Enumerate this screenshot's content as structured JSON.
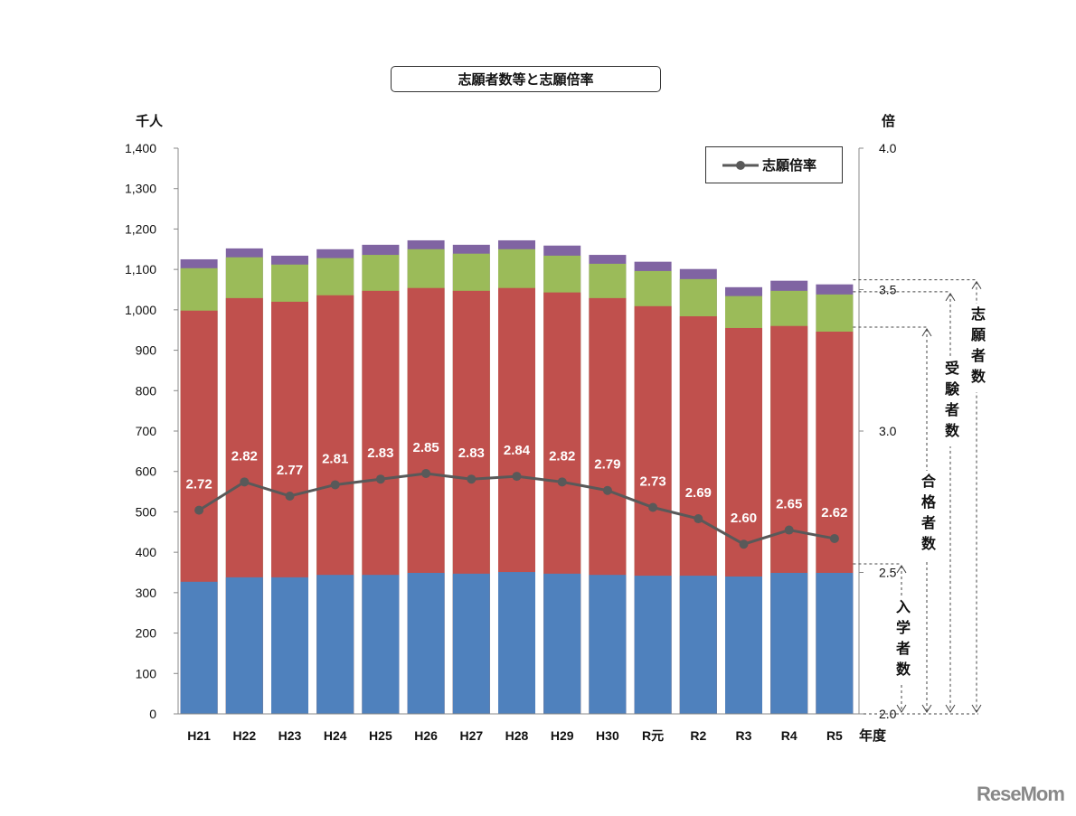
{
  "chart_data": {
    "type": "bar",
    "title": "志願者数等と志願倍率",
    "left_axis_unit": "千人",
    "right_axis_unit": "倍",
    "xlabel": "年度",
    "categories": [
      "H21",
      "H22",
      "H23",
      "H24",
      "H25",
      "H26",
      "H27",
      "H28",
      "H29",
      "H30",
      "R元",
      "R2",
      "R3",
      "R4",
      "R5"
    ],
    "ylim": [
      0,
      1400
    ],
    "y_ticks": [
      0,
      100,
      200,
      300,
      400,
      500,
      600,
      700,
      800,
      900,
      1000,
      1100,
      1200,
      1300,
      1400
    ],
    "y_tick_labels": [
      "0",
      "100",
      "200",
      "300",
      "400",
      "500",
      "600",
      "700",
      "800",
      "900",
      "1,000",
      "1,100",
      "1,200",
      "1,300",
      "1,400"
    ],
    "y2lim": [
      2.0,
      4.0
    ],
    "y2_ticks": [
      2.0,
      2.5,
      3.0,
      3.5,
      4.0
    ],
    "y2_tick_labels": [
      "2.0",
      "2.5",
      "3.0",
      "3.5",
      "4.0"
    ],
    "grid": false,
    "bars_overlapping": true,
    "series": [
      {
        "name": "志願者数",
        "color": "#8064a2",
        "values": [
          1125,
          1152,
          1134,
          1150,
          1161,
          1172,
          1161,
          1172,
          1159,
          1136,
          1119,
          1101,
          1056,
          1072,
          1063
        ]
      },
      {
        "name": "受験者数",
        "color": "#9bbb59",
        "values": [
          1103,
          1130,
          1112,
          1128,
          1136,
          1150,
          1139,
          1150,
          1134,
          1114,
          1096,
          1076,
          1034,
          1047,
          1038
        ]
      },
      {
        "name": "合格者数",
        "color": "#c0504d",
        "values": [
          998,
          1029,
          1020,
          1036,
          1047,
          1054,
          1047,
          1054,
          1043,
          1029,
          1009,
          984,
          955,
          960,
          946
        ]
      },
      {
        "name": "入学者数",
        "color": "#4f81bd",
        "values": [
          327,
          338,
          338,
          344,
          344,
          349,
          347,
          351,
          347,
          344,
          342,
          342,
          340,
          349,
          349
        ]
      }
    ],
    "line_series": {
      "name": "志願倍率",
      "color": "#595959",
      "axis": "right",
      "values": [
        2.72,
        2.82,
        2.77,
        2.81,
        2.83,
        2.85,
        2.83,
        2.84,
        2.82,
        2.79,
        2.73,
        2.69,
        2.6,
        2.65,
        2.62
      ],
      "labels": [
        "2.72",
        "2.82",
        "2.77",
        "2.81",
        "2.83",
        "2.85",
        "2.83",
        "2.84",
        "2.82",
        "2.79",
        "2.73",
        "2.69",
        "2.60",
        "2.65",
        "2.62"
      ]
    },
    "legend": {
      "position": "top-right",
      "entries": [
        "志願倍率"
      ]
    },
    "annotations": [
      "志願者数",
      "受験者数",
      "合格者数",
      "入学者数"
    ]
  },
  "logo_text": "ReseMom"
}
